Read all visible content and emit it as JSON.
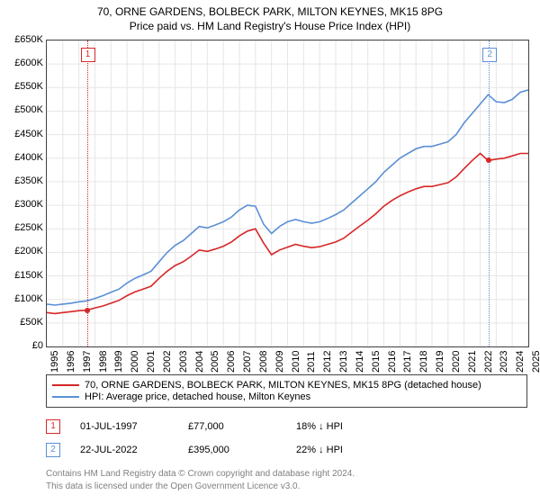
{
  "title_line1": "70, ORNE GARDENS, BOLBECK PARK, MILTON KEYNES, MK15 8PG",
  "title_line2": "Price paid vs. HM Land Registry's House Price Index (HPI)",
  "chart": {
    "type": "line",
    "background_color": "#ffffff",
    "grid_color": "#e6e6e6",
    "border_color": "#444444",
    "x_domain": [
      1995,
      2025
    ],
    "y_domain": [
      0,
      650000
    ],
    "y_ticks": [
      0,
      50000,
      100000,
      150000,
      200000,
      250000,
      300000,
      350000,
      400000,
      450000,
      500000,
      550000,
      600000,
      650000
    ],
    "y_tick_labels": [
      "£0",
      "£50K",
      "£100K",
      "£150K",
      "£200K",
      "£250K",
      "£300K",
      "£350K",
      "£400K",
      "£450K",
      "£500K",
      "£550K",
      "£600K",
      "£650K"
    ],
    "x_ticks": [
      1995,
      1996,
      1997,
      1998,
      1999,
      2000,
      2001,
      2002,
      2003,
      2004,
      2005,
      2006,
      2007,
      2008,
      2009,
      2010,
      2011,
      2012,
      2013,
      2014,
      2015,
      2016,
      2017,
      2018,
      2019,
      2020,
      2021,
      2022,
      2023,
      2024,
      2025
    ],
    "label_fontsize": 11,
    "title_fontsize": 12,
    "line_width": 1.6,
    "series": [
      {
        "id": "hpi",
        "label": "HPI: Average price, detached house, Milton Keynes",
        "color": "#5b8fd6",
        "points": [
          [
            1995.0,
            90000
          ],
          [
            1995.5,
            88000
          ],
          [
            1996.0,
            90000
          ],
          [
            1996.5,
            92000
          ],
          [
            1997.0,
            95000
          ],
          [
            1997.5,
            97000
          ],
          [
            1998.0,
            102000
          ],
          [
            1998.5,
            108000
          ],
          [
            1999.0,
            115000
          ],
          [
            1999.5,
            122000
          ],
          [
            2000.0,
            135000
          ],
          [
            2000.5,
            145000
          ],
          [
            2001.0,
            152000
          ],
          [
            2001.5,
            160000
          ],
          [
            2002.0,
            180000
          ],
          [
            2002.5,
            200000
          ],
          [
            2003.0,
            215000
          ],
          [
            2003.5,
            225000
          ],
          [
            2004.0,
            240000
          ],
          [
            2004.5,
            255000
          ],
          [
            2005.0,
            252000
          ],
          [
            2005.5,
            258000
          ],
          [
            2006.0,
            265000
          ],
          [
            2006.5,
            275000
          ],
          [
            2007.0,
            290000
          ],
          [
            2007.5,
            300000
          ],
          [
            2008.0,
            298000
          ],
          [
            2008.5,
            260000
          ],
          [
            2009.0,
            240000
          ],
          [
            2009.5,
            255000
          ],
          [
            2010.0,
            265000
          ],
          [
            2010.5,
            270000
          ],
          [
            2011.0,
            265000
          ],
          [
            2011.5,
            262000
          ],
          [
            2012.0,
            265000
          ],
          [
            2012.5,
            272000
          ],
          [
            2013.0,
            280000
          ],
          [
            2013.5,
            290000
          ],
          [
            2014.0,
            305000
          ],
          [
            2014.5,
            320000
          ],
          [
            2015.0,
            335000
          ],
          [
            2015.5,
            350000
          ],
          [
            2016.0,
            370000
          ],
          [
            2016.5,
            385000
          ],
          [
            2017.0,
            400000
          ],
          [
            2017.5,
            410000
          ],
          [
            2018.0,
            420000
          ],
          [
            2018.5,
            425000
          ],
          [
            2019.0,
            425000
          ],
          [
            2019.5,
            430000
          ],
          [
            2020.0,
            435000
          ],
          [
            2020.5,
            450000
          ],
          [
            2021.0,
            475000
          ],
          [
            2021.5,
            495000
          ],
          [
            2022.0,
            515000
          ],
          [
            2022.5,
            535000
          ],
          [
            2023.0,
            520000
          ],
          [
            2023.5,
            518000
          ],
          [
            2024.0,
            525000
          ],
          [
            2024.5,
            540000
          ],
          [
            2025.0,
            545000
          ]
        ]
      },
      {
        "id": "price_paid",
        "label": "70, ORNE GARDENS, BOLBECK PARK, MILTON KEYNES, MK15 8PG (detached house)",
        "color": "#d62728",
        "points": [
          [
            1995.0,
            72000
          ],
          [
            1995.5,
            70000
          ],
          [
            1996.0,
            72000
          ],
          [
            1996.5,
            74000
          ],
          [
            1997.0,
            76000
          ],
          [
            1997.5,
            77000
          ],
          [
            1998.0,
            82000
          ],
          [
            1998.5,
            86000
          ],
          [
            1999.0,
            92000
          ],
          [
            1999.5,
            98000
          ],
          [
            2000.0,
            108000
          ],
          [
            2000.5,
            116000
          ],
          [
            2001.0,
            122000
          ],
          [
            2001.5,
            128000
          ],
          [
            2002.0,
            145000
          ],
          [
            2002.5,
            160000
          ],
          [
            2003.0,
            172000
          ],
          [
            2003.5,
            180000
          ],
          [
            2004.0,
            192000
          ],
          [
            2004.5,
            205000
          ],
          [
            2005.0,
            202000
          ],
          [
            2005.5,
            207000
          ],
          [
            2006.0,
            213000
          ],
          [
            2006.5,
            222000
          ],
          [
            2007.0,
            235000
          ],
          [
            2007.5,
            245000
          ],
          [
            2008.0,
            250000
          ],
          [
            2008.5,
            220000
          ],
          [
            2009.0,
            195000
          ],
          [
            2009.5,
            205000
          ],
          [
            2010.0,
            211000
          ],
          [
            2010.5,
            217000
          ],
          [
            2011.0,
            213000
          ],
          [
            2011.5,
            210000
          ],
          [
            2012.0,
            212000
          ],
          [
            2012.5,
            217000
          ],
          [
            2013.0,
            222000
          ],
          [
            2013.5,
            230000
          ],
          [
            2014.0,
            243000
          ],
          [
            2014.5,
            256000
          ],
          [
            2015.0,
            268000
          ],
          [
            2015.5,
            282000
          ],
          [
            2016.0,
            298000
          ],
          [
            2016.5,
            310000
          ],
          [
            2017.0,
            320000
          ],
          [
            2017.5,
            328000
          ],
          [
            2018.0,
            335000
          ],
          [
            2018.5,
            340000
          ],
          [
            2019.0,
            340000
          ],
          [
            2019.5,
            344000
          ],
          [
            2020.0,
            348000
          ],
          [
            2020.5,
            360000
          ],
          [
            2021.0,
            378000
          ],
          [
            2021.5,
            395000
          ],
          [
            2022.0,
            410000
          ],
          [
            2022.5,
            395000
          ],
          [
            2023.0,
            398000
          ],
          [
            2023.5,
            400000
          ],
          [
            2024.0,
            405000
          ],
          [
            2024.5,
            410000
          ],
          [
            2025.0,
            410000
          ]
        ]
      }
    ],
    "sale_markers": [
      {
        "num": "1",
        "box_color": "#d62728",
        "x": 1997.5,
        "dot_y": 77000,
        "date": "01-JUL-1997",
        "price": "£77,000",
        "delta": "18% ↓ HPI"
      },
      {
        "num": "2",
        "box_color": "#5b8fd6",
        "x": 2022.55,
        "dot_y": 395000,
        "date": "22-JUL-2022",
        "price": "£395,000",
        "delta": "22% ↓ HPI"
      }
    ],
    "marker_dot_color": "#d62728"
  },
  "attribution_line1": "Contains HM Land Registry data © Crown copyright and database right 2024.",
  "attribution_line2": "This data is licensed under the Open Government Licence v3.0."
}
